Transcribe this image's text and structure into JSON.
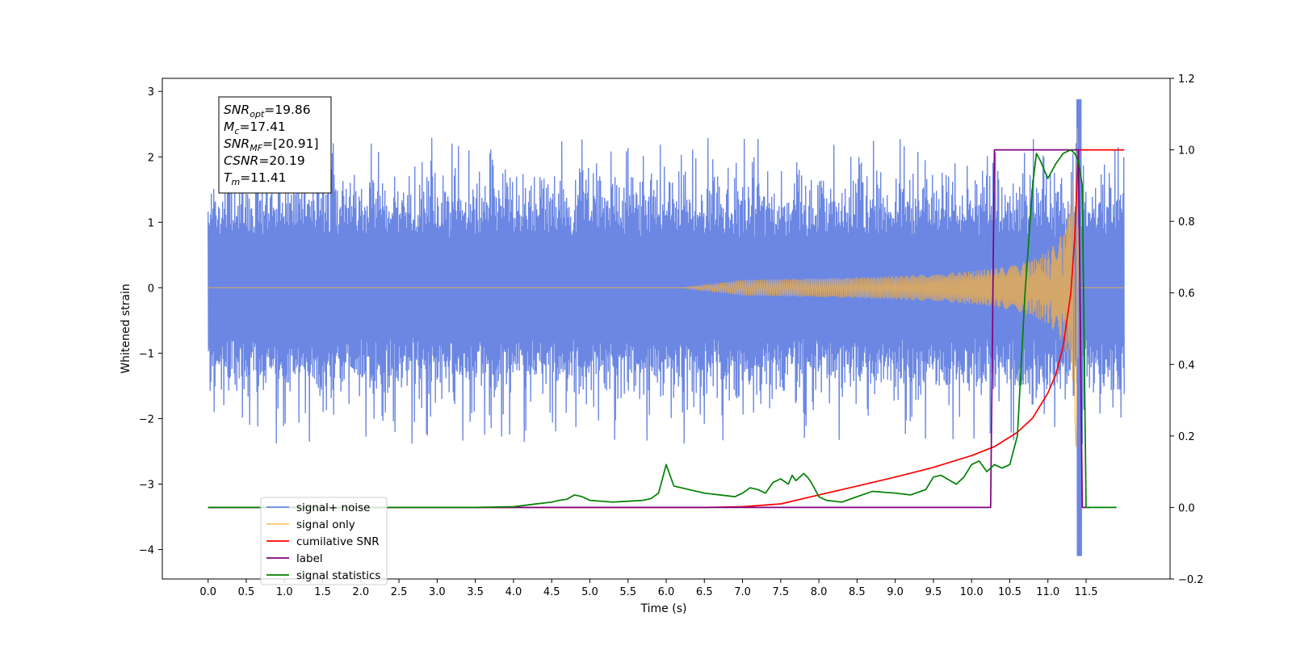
{
  "chart_data": {
    "type": "line",
    "xlabel": "Time (s)",
    "ylabel": "Whitened strain",
    "xlim": [
      -0.6,
      12.6
    ],
    "ylim": [
      -4.45,
      3.2
    ],
    "y2lim": [
      -0.2,
      1.2
    ],
    "x_ticks": [
      0.0,
      0.5,
      1.0,
      1.5,
      2.0,
      2.5,
      3.0,
      3.5,
      4.0,
      4.5,
      5.0,
      5.5,
      6.0,
      6.5,
      7.0,
      7.5,
      8.0,
      8.5,
      9.0,
      9.5,
      10.0,
      10.5,
      11.0,
      11.5
    ],
    "x_tick_labels": [
      "0.0",
      "0.5",
      "1.0",
      "1.5",
      "2.0",
      "2.5",
      "3.0",
      "3.5",
      "4.0",
      "4.5",
      "5.0",
      "5.5",
      "6.0",
      "6.5",
      "7.0",
      "7.5",
      "8.0",
      "8.5",
      "9.0",
      "9.5",
      "10.0",
      "10.5",
      "11.0",
      "11.5"
    ],
    "y_ticks": [
      3,
      2,
      1,
      0,
      -1,
      -2,
      -3,
      -4
    ],
    "y_tick_labels": [
      "3",
      "2",
      "1",
      "0",
      "−1",
      "−2",
      "−3",
      "−4"
    ],
    "y2_ticks": [
      1.2,
      1.0,
      0.8,
      0.6,
      0.4,
      0.2,
      0.0,
      -0.2
    ],
    "y2_tick_labels": [
      "1.2",
      "1.0",
      "0.8",
      "0.6",
      "0.4",
      "0.2",
      "0.0",
      "−0.2"
    ],
    "grid": false,
    "legend_position": "lower-left",
    "series": [
      {
        "name": "signal+ noise",
        "axis": "left",
        "color": "#6b87e3",
        "note": "noisy whitened strain, amplitude ~±1.5 with peaks near 2.9 and -4.1 at t≈11.41"
      },
      {
        "name": "signal only",
        "axis": "left",
        "color": "#f5b041"
      },
      {
        "name": "cumilative SNR",
        "axis": "right",
        "color": "#ff0000",
        "x": [
          0,
          6.5,
          7.0,
          7.5,
          8.0,
          8.5,
          9.0,
          9.5,
          10.0,
          10.3,
          10.6,
          10.8,
          11.0,
          11.1,
          11.2,
          11.3,
          11.35,
          11.4,
          11.5,
          12.0
        ],
        "y": [
          0.0,
          0.0,
          0.002,
          0.01,
          0.035,
          0.06,
          0.085,
          0.112,
          0.145,
          0.17,
          0.21,
          0.25,
          0.32,
          0.37,
          0.45,
          0.6,
          0.75,
          1.0,
          1.0,
          1.0
        ]
      },
      {
        "name": "label",
        "axis": "right",
        "color": "#800080",
        "x": [
          0,
          10.25,
          10.3,
          11.4,
          11.45,
          11.55
        ],
        "y": [
          0,
          0,
          1,
          1,
          0,
          0
        ]
      },
      {
        "name": "signal statistics",
        "axis": "right",
        "color": "#008000",
        "x": [
          0,
          2.5,
          3.0,
          3.5,
          4.0,
          4.3,
          4.5,
          4.6,
          4.7,
          4.8,
          4.9,
          5.0,
          5.3,
          5.7,
          5.8,
          5.9,
          5.95,
          6.0,
          6.1,
          6.3,
          6.5,
          6.7,
          6.9,
          7.0,
          7.1,
          7.2,
          7.3,
          7.4,
          7.5,
          7.6,
          7.65,
          7.7,
          7.8,
          7.85,
          7.9,
          8.0,
          8.1,
          8.3,
          8.5,
          8.7,
          9.0,
          9.2,
          9.4,
          9.5,
          9.6,
          9.8,
          9.9,
          10.0,
          10.1,
          10.2,
          10.3,
          10.4,
          10.5,
          10.6,
          10.7,
          10.8,
          10.85,
          10.9,
          11.0,
          11.1,
          11.2,
          11.3,
          11.35,
          11.4,
          11.45,
          11.5,
          11.6,
          11.9
        ],
        "y": [
          0.0,
          0.0,
          0.0,
          0.0,
          0.002,
          0.01,
          0.015,
          0.02,
          0.023,
          0.035,
          0.03,
          0.02,
          0.015,
          0.02,
          0.025,
          0.04,
          0.08,
          0.12,
          0.06,
          0.05,
          0.04,
          0.035,
          0.03,
          0.04,
          0.055,
          0.05,
          0.04,
          0.07,
          0.08,
          0.065,
          0.09,
          0.075,
          0.095,
          0.085,
          0.07,
          0.03,
          0.02,
          0.015,
          0.03,
          0.045,
          0.04,
          0.035,
          0.05,
          0.085,
          0.09,
          0.065,
          0.085,
          0.12,
          0.13,
          0.1,
          0.12,
          0.11,
          0.12,
          0.2,
          0.6,
          0.9,
          0.99,
          0.97,
          0.92,
          0.96,
          0.99,
          1.0,
          0.99,
          0.97,
          0.9,
          0.0,
          0.0,
          0.0
        ]
      }
    ],
    "annotation": {
      "lines": [
        {
          "sym": "SNR",
          "sub": "opt",
          "val": "=19.86"
        },
        {
          "sym": "M",
          "sub": "c",
          "val": "=17.41"
        },
        {
          "sym": "SNR",
          "sub": "MF",
          "val": "=[20.91]"
        },
        {
          "sym": "CSNR",
          "sub": "",
          "val": "=20.19"
        },
        {
          "sym": "T",
          "sub": "m",
          "val": "=11.41"
        }
      ]
    }
  }
}
